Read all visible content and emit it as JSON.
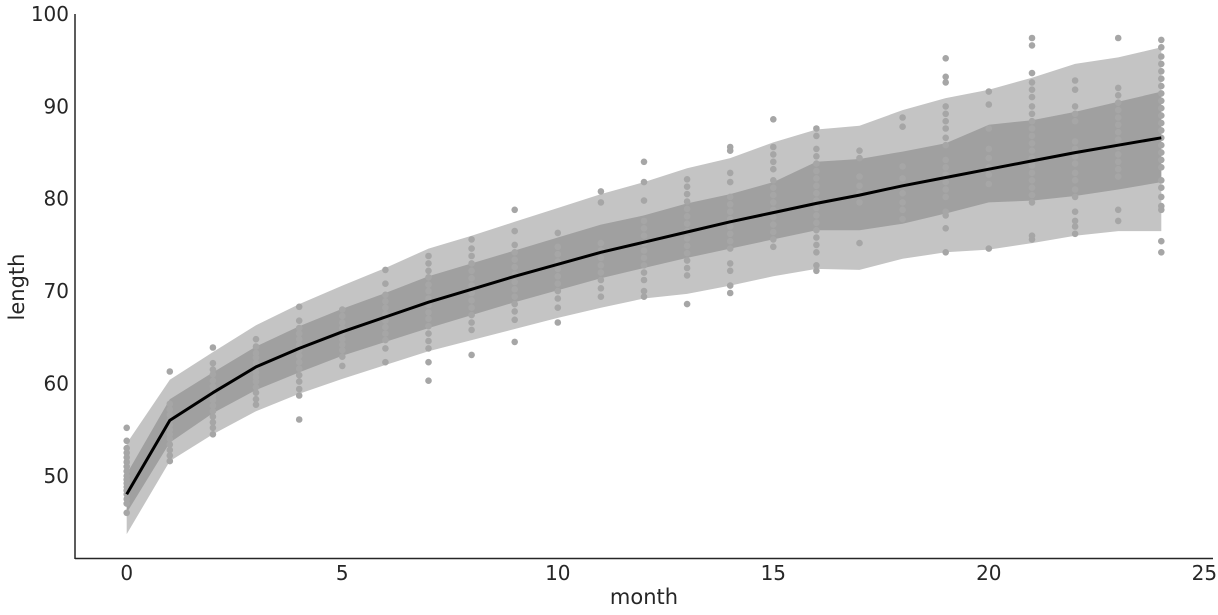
{
  "chart_data": {
    "type": "line",
    "title": "",
    "xlabel": "month",
    "ylabel": "length",
    "xlim": [
      -1.2,
      25.2
    ],
    "ylim": [
      41,
      100
    ],
    "xticks": [
      0,
      5,
      10,
      15,
      20,
      25
    ],
    "yticks": [
      50,
      60,
      70,
      80,
      90,
      100
    ],
    "grid": false,
    "legend": "none",
    "colors": {
      "mean_line": "#000000",
      "band_inner": "#a0a0a0",
      "band_outer": "#c4c4c4",
      "points": "#a6a6a6"
    },
    "x": [
      0,
      1,
      2,
      3,
      4,
      5,
      6,
      7,
      8,
      9,
      10,
      11,
      12,
      13,
      14,
      15,
      16,
      17,
      18,
      19,
      20,
      21,
      22,
      23,
      24
    ],
    "series": [
      {
        "role": "mean",
        "values": [
          48.0,
          56.0,
          59.0,
          61.8,
          63.8,
          65.6,
          67.2,
          68.8,
          70.2,
          71.6,
          72.9,
          74.2,
          75.3,
          76.4,
          77.5,
          78.5,
          79.5,
          80.4,
          81.4,
          82.3,
          83.2,
          84.1,
          85.0,
          85.8,
          86.6
        ]
      },
      {
        "role": "band_inner_lower",
        "values": [
          46.0,
          53.6,
          56.8,
          59.3,
          61.2,
          63.0,
          64.5,
          66.0,
          67.4,
          68.8,
          70.1,
          71.4,
          72.5,
          73.6,
          74.6,
          75.6,
          76.6,
          76.6,
          77.3,
          78.4,
          79.6,
          79.8,
          80.3,
          81.0,
          81.8
        ]
      },
      {
        "role": "band_inner_upper",
        "values": [
          50.2,
          58.3,
          61.2,
          64.0,
          66.2,
          68.1,
          69.8,
          71.6,
          73.0,
          74.4,
          75.8,
          77.2,
          78.2,
          79.5,
          80.5,
          81.8,
          84.0,
          84.3,
          85.1,
          86.0,
          88.0,
          88.5,
          89.4,
          90.5,
          91.6
        ]
      },
      {
        "role": "band_outer_lower",
        "values": [
          43.7,
          51.6,
          54.5,
          57.0,
          58.9,
          60.5,
          62.0,
          63.5,
          64.7,
          65.9,
          67.1,
          68.2,
          69.2,
          69.7,
          70.6,
          71.6,
          72.4,
          72.3,
          73.5,
          74.2,
          74.5,
          75.2,
          76.0,
          76.5,
          76.5
        ]
      },
      {
        "role": "band_outer_upper",
        "values": [
          53.5,
          60.4,
          63.4,
          66.3,
          68.6,
          70.6,
          72.5,
          74.6,
          76.0,
          77.5,
          79.0,
          80.5,
          81.8,
          83.3,
          84.4,
          86.1,
          87.5,
          87.9,
          89.6,
          90.9,
          91.8,
          93.1,
          94.6,
          95.3,
          96.4
        ]
      }
    ],
    "points": [
      [
        0,
        55.2
      ],
      [
        0,
        53.8
      ],
      [
        0,
        53.0
      ],
      [
        0,
        52.5
      ],
      [
        0,
        52.0
      ],
      [
        0,
        51.5
      ],
      [
        0,
        51.0
      ],
      [
        0,
        50.5
      ],
      [
        0,
        50.0
      ],
      [
        0,
        49.6
      ],
      [
        0,
        49.2
      ],
      [
        0,
        48.8
      ],
      [
        0,
        48.4
      ],
      [
        0,
        48.0
      ],
      [
        0,
        47.5
      ],
      [
        0,
        47.0
      ],
      [
        0,
        46.0
      ],
      [
        1,
        61.3
      ],
      [
        1,
        57.8
      ],
      [
        1,
        57.2
      ],
      [
        1,
        56.6
      ],
      [
        1,
        56.0
      ],
      [
        1,
        55.5
      ],
      [
        1,
        55.0
      ],
      [
        1,
        54.5
      ],
      [
        1,
        54.0
      ],
      [
        1,
        53.4
      ],
      [
        1,
        52.8
      ],
      [
        1,
        52.2
      ],
      [
        1,
        51.6
      ],
      [
        2,
        63.9
      ],
      [
        2,
        62.2
      ],
      [
        2,
        61.5
      ],
      [
        2,
        61.0
      ],
      [
        2,
        60.3
      ],
      [
        2,
        59.7
      ],
      [
        2,
        59.2
      ],
      [
        2,
        58.7
      ],
      [
        2,
        58.2
      ],
      [
        2,
        57.6
      ],
      [
        2,
        57.0
      ],
      [
        2,
        56.4
      ],
      [
        2,
        55.8
      ],
      [
        2,
        55.2
      ],
      [
        2,
        54.5
      ],
      [
        3,
        64.8
      ],
      [
        3,
        64.0
      ],
      [
        3,
        63.3
      ],
      [
        3,
        62.8
      ],
      [
        3,
        62.2
      ],
      [
        3,
        61.7
      ],
      [
        3,
        61.2
      ],
      [
        3,
        60.7
      ],
      [
        3,
        60.2
      ],
      [
        3,
        59.6
      ],
      [
        3,
        59.0
      ],
      [
        3,
        58.3
      ],
      [
        3,
        57.7
      ],
      [
        4,
        68.3
      ],
      [
        4,
        66.8
      ],
      [
        4,
        66.0
      ],
      [
        4,
        65.4
      ],
      [
        4,
        64.8
      ],
      [
        4,
        64.2
      ],
      [
        4,
        63.6
      ],
      [
        4,
        63.0
      ],
      [
        4,
        62.3
      ],
      [
        4,
        61.6
      ],
      [
        4,
        60.9
      ],
      [
        4,
        60.2
      ],
      [
        4,
        59.4
      ],
      [
        4,
        58.7
      ],
      [
        4,
        56.1
      ],
      [
        5,
        68.0
      ],
      [
        5,
        67.3
      ],
      [
        5,
        66.6
      ],
      [
        5,
        66.0
      ],
      [
        5,
        65.4
      ],
      [
        5,
        64.8
      ],
      [
        5,
        64.2
      ],
      [
        5,
        63.6
      ],
      [
        5,
        62.9
      ],
      [
        5,
        61.9
      ],
      [
        6,
        72.3
      ],
      [
        6,
        70.8
      ],
      [
        6,
        69.6
      ],
      [
        6,
        68.9
      ],
      [
        6,
        68.2
      ],
      [
        6,
        67.5
      ],
      [
        6,
        66.8
      ],
      [
        6,
        66.1
      ],
      [
        6,
        65.4
      ],
      [
        6,
        64.7
      ],
      [
        6,
        63.8
      ],
      [
        6,
        62.3
      ],
      [
        7,
        73.8
      ],
      [
        7,
        73.0
      ],
      [
        7,
        72.2
      ],
      [
        7,
        71.5
      ],
      [
        7,
        70.7
      ],
      [
        7,
        70.0
      ],
      [
        7,
        69.2
      ],
      [
        7,
        68.5
      ],
      [
        7,
        67.7
      ],
      [
        7,
        67.0
      ],
      [
        7,
        66.2
      ],
      [
        7,
        65.4
      ],
      [
        7,
        64.6
      ],
      [
        7,
        63.8
      ],
      [
        7,
        62.3
      ],
      [
        7,
        60.3
      ],
      [
        8,
        75.6
      ],
      [
        8,
        74.6
      ],
      [
        8,
        73.8
      ],
      [
        8,
        73.0
      ],
      [
        8,
        72.2
      ],
      [
        8,
        71.4
      ],
      [
        8,
        70.6
      ],
      [
        8,
        69.8
      ],
      [
        8,
        69.0
      ],
      [
        8,
        68.2
      ],
      [
        8,
        67.4
      ],
      [
        8,
        66.6
      ],
      [
        8,
        65.8
      ],
      [
        8,
        63.1
      ],
      [
        9,
        78.8
      ],
      [
        9,
        76.5
      ],
      [
        9,
        75.0
      ],
      [
        9,
        74.2
      ],
      [
        9,
        73.4
      ],
      [
        9,
        72.6
      ],
      [
        9,
        71.8
      ],
      [
        9,
        71.0
      ],
      [
        9,
        70.2
      ],
      [
        9,
        69.4
      ],
      [
        9,
        68.6
      ],
      [
        9,
        67.8
      ],
      [
        9,
        66.9
      ],
      [
        9,
        64.5
      ],
      [
        10,
        76.3
      ],
      [
        10,
        74.8
      ],
      [
        10,
        74.0
      ],
      [
        10,
        73.2
      ],
      [
        10,
        72.4
      ],
      [
        10,
        71.6
      ],
      [
        10,
        70.8
      ],
      [
        10,
        70.0
      ],
      [
        10,
        69.2
      ],
      [
        10,
        68.2
      ],
      [
        10,
        66.6
      ],
      [
        11,
        80.8
      ],
      [
        11,
        79.6
      ],
      [
        11,
        75.2
      ],
      [
        11,
        74.4
      ],
      [
        11,
        73.6
      ],
      [
        11,
        72.8
      ],
      [
        11,
        72.0
      ],
      [
        11,
        71.2
      ],
      [
        11,
        70.3
      ],
      [
        11,
        69.4
      ],
      [
        12,
        84.0
      ],
      [
        12,
        81.8
      ],
      [
        12,
        79.8
      ],
      [
        12,
        77.6
      ],
      [
        12,
        76.8
      ],
      [
        12,
        76.0
      ],
      [
        12,
        75.2
      ],
      [
        12,
        74.4
      ],
      [
        12,
        73.6
      ],
      [
        12,
        72.8
      ],
      [
        12,
        72.0
      ],
      [
        12,
        71.2
      ],
      [
        12,
        70.0
      ],
      [
        12,
        69.4
      ],
      [
        13,
        82.1
      ],
      [
        13,
        81.3
      ],
      [
        13,
        80.5
      ],
      [
        13,
        79.7
      ],
      [
        13,
        78.9
      ],
      [
        13,
        78.1
      ],
      [
        13,
        77.3
      ],
      [
        13,
        76.5
      ],
      [
        13,
        75.7
      ],
      [
        13,
        74.9
      ],
      [
        13,
        74.1
      ],
      [
        13,
        73.3
      ],
      [
        13,
        72.5
      ],
      [
        13,
        71.7
      ],
      [
        13,
        68.6
      ],
      [
        14,
        85.6
      ],
      [
        14,
        85.2
      ],
      [
        14,
        82.8
      ],
      [
        14,
        81.8
      ],
      [
        14,
        80.2
      ],
      [
        14,
        79.4
      ],
      [
        14,
        78.6
      ],
      [
        14,
        77.8
      ],
      [
        14,
        77.0
      ],
      [
        14,
        76.2
      ],
      [
        14,
        75.4
      ],
      [
        14,
        74.6
      ],
      [
        14,
        73.0
      ],
      [
        14,
        72.2
      ],
      [
        14,
        70.6
      ],
      [
        14,
        69.8
      ],
      [
        15,
        88.6
      ],
      [
        15,
        85.6
      ],
      [
        15,
        84.8
      ],
      [
        15,
        84.0
      ],
      [
        15,
        83.2
      ],
      [
        15,
        82.0
      ],
      [
        15,
        81.2
      ],
      [
        15,
        80.4
      ],
      [
        15,
        79.6
      ],
      [
        15,
        78.8
      ],
      [
        15,
        78.0
      ],
      [
        15,
        77.2
      ],
      [
        15,
        76.4
      ],
      [
        15,
        75.6
      ],
      [
        15,
        74.8
      ],
      [
        16,
        87.6
      ],
      [
        16,
        86.8
      ],
      [
        16,
        85.4
      ],
      [
        16,
        84.6
      ],
      [
        16,
        83.8
      ],
      [
        16,
        83.0
      ],
      [
        16,
        82.2
      ],
      [
        16,
        81.4
      ],
      [
        16,
        80.6
      ],
      [
        16,
        79.8
      ],
      [
        16,
        79.0
      ],
      [
        16,
        78.2
      ],
      [
        16,
        77.4
      ],
      [
        16,
        76.6
      ],
      [
        16,
        75.8
      ],
      [
        16,
        75.0
      ],
      [
        16,
        74.2
      ],
      [
        16,
        72.8
      ],
      [
        16,
        72.2
      ],
      [
        17,
        85.2
      ],
      [
        17,
        84.4
      ],
      [
        17,
        82.4
      ],
      [
        17,
        81.4
      ],
      [
        17,
        80.6
      ],
      [
        17,
        79.6
      ],
      [
        17,
        75.2
      ],
      [
        18,
        88.8
      ],
      [
        18,
        87.8
      ],
      [
        18,
        83.5
      ],
      [
        18,
        82.2
      ],
      [
        18,
        80.6
      ],
      [
        18,
        79.6
      ],
      [
        18,
        78.8
      ],
      [
        18,
        77.8
      ],
      [
        19,
        95.2
      ],
      [
        19,
        93.2
      ],
      [
        19,
        92.6
      ],
      [
        19,
        90.0
      ],
      [
        19,
        89.2
      ],
      [
        19,
        88.4
      ],
      [
        19,
        87.6
      ],
      [
        19,
        86.6
      ],
      [
        19,
        85.8
      ],
      [
        19,
        84.2
      ],
      [
        19,
        83.4
      ],
      [
        19,
        82.6
      ],
      [
        19,
        81.8
      ],
      [
        19,
        81.0
      ],
      [
        19,
        80.2
      ],
      [
        19,
        78.6
      ],
      [
        19,
        78.2
      ],
      [
        19,
        76.8
      ],
      [
        19,
        74.2
      ],
      [
        20,
        91.6
      ],
      [
        20,
        90.2
      ],
      [
        20,
        87.6
      ],
      [
        20,
        85.4
      ],
      [
        20,
        84.4
      ],
      [
        20,
        83.4
      ],
      [
        20,
        82.6
      ],
      [
        20,
        81.6
      ],
      [
        20,
        74.6
      ],
      [
        21,
        97.4
      ],
      [
        21,
        96.6
      ],
      [
        21,
        93.6
      ],
      [
        21,
        92.6
      ],
      [
        21,
        91.8
      ],
      [
        21,
        91.0
      ],
      [
        21,
        90.0
      ],
      [
        21,
        89.2
      ],
      [
        21,
        88.4
      ],
      [
        21,
        87.6
      ],
      [
        21,
        86.8
      ],
      [
        21,
        86.0
      ],
      [
        21,
        85.2
      ],
      [
        21,
        84.4
      ],
      [
        21,
        83.6
      ],
      [
        21,
        82.8
      ],
      [
        21,
        82.0
      ],
      [
        21,
        81.2
      ],
      [
        21,
        80.4
      ],
      [
        21,
        79.6
      ],
      [
        21,
        76.0
      ],
      [
        21,
        75.6
      ],
      [
        22,
        92.8
      ],
      [
        22,
        91.8
      ],
      [
        22,
        90.0
      ],
      [
        22,
        89.2
      ],
      [
        22,
        88.4
      ],
      [
        22,
        86.2
      ],
      [
        22,
        85.4
      ],
      [
        22,
        84.6
      ],
      [
        22,
        83.8
      ],
      [
        22,
        82.8
      ],
      [
        22,
        82.0
      ],
      [
        22,
        81.0
      ],
      [
        22,
        80.2
      ],
      [
        22,
        78.6
      ],
      [
        22,
        77.6
      ],
      [
        22,
        77.0
      ],
      [
        22,
        76.2
      ],
      [
        23,
        97.4
      ],
      [
        23,
        92.0
      ],
      [
        23,
        91.2
      ],
      [
        23,
        90.4
      ],
      [
        23,
        89.6
      ],
      [
        23,
        88.8
      ],
      [
        23,
        88.0
      ],
      [
        23,
        87.2
      ],
      [
        23,
        86.4
      ],
      [
        23,
        85.6
      ],
      [
        23,
        84.8
      ],
      [
        23,
        84.0
      ],
      [
        23,
        83.2
      ],
      [
        23,
        82.4
      ],
      [
        23,
        78.8
      ],
      [
        23,
        77.6
      ],
      [
        24,
        97.2
      ],
      [
        24,
        96.4
      ],
      [
        24,
        95.4
      ],
      [
        24,
        94.6
      ],
      [
        24,
        93.8
      ],
      [
        24,
        93.0
      ],
      [
        24,
        92.2
      ],
      [
        24,
        91.4
      ],
      [
        24,
        90.6
      ],
      [
        24,
        89.8
      ],
      [
        24,
        89.0
      ],
      [
        24,
        88.2
      ],
      [
        24,
        87.4
      ],
      [
        24,
        86.6
      ],
      [
        24,
        85.8
      ],
      [
        24,
        85.0
      ],
      [
        24,
        84.2
      ],
      [
        24,
        83.4
      ],
      [
        24,
        82.0
      ],
      [
        24,
        81.2
      ],
      [
        24,
        80.2
      ],
      [
        24,
        79.2
      ],
      [
        24,
        78.8
      ],
      [
        24,
        75.4
      ],
      [
        24,
        74.2
      ]
    ]
  }
}
